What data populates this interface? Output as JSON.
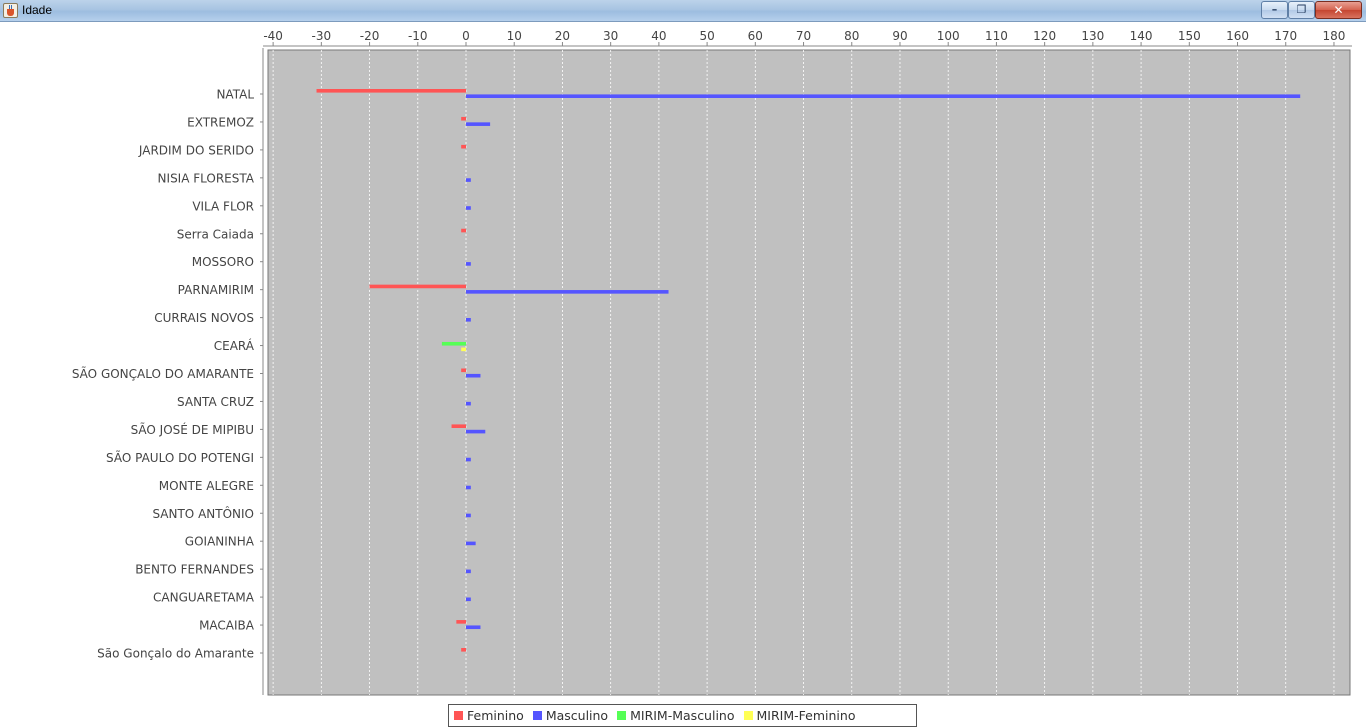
{
  "window": {
    "title": "Idade",
    "minimize_glyph": "–",
    "restore_glyph": "❐",
    "close_glyph": "✕"
  },
  "colors": {
    "Feminino": "#ff5555",
    "Masculino": "#5555ff",
    "MIRIM-Masculino": "#55ff55",
    "MIRIM-Feminino": "#ffff55",
    "plot_background": "#c0c0c0",
    "gridline": "#ffffff"
  },
  "chart_data": {
    "type": "bar",
    "orientation": "horizontal",
    "title": "",
    "xlabel": "",
    "ylabel": "",
    "xlim": [
      -41,
      182
    ],
    "ticks": [
      -40,
      -30,
      -20,
      -10,
      0,
      10,
      20,
      30,
      40,
      50,
      60,
      70,
      80,
      90,
      100,
      110,
      120,
      130,
      140,
      150,
      160,
      170,
      180
    ],
    "tick_labels": [
      "-40",
      "-30",
      "-20",
      "-10",
      "0",
      "10",
      "20",
      "30",
      "40",
      "50",
      "60",
      "70",
      "80",
      "90",
      "100",
      "110",
      "120",
      "130",
      "140",
      "150",
      "160",
      "170",
      "180"
    ],
    "grid": "vertical dashed",
    "legend_position": "bottom-center",
    "categories": [
      "NATAL",
      "EXTREMOZ",
      "JARDIM DO SERIDO",
      "NISIA FLORESTA",
      "VILA FLOR",
      "Serra Caiada",
      "MOSSORO",
      "PARNAMIRIM",
      "CURRAIS NOVOS",
      "CEARÁ",
      "SÃO GONÇALO DO AMARANTE",
      "SANTA CRUZ",
      "SÃO JOSÉ DE MIPIBU",
      "SÃO PAULO DO POTENGI",
      "MONTE ALEGRE",
      "SANTO ANTÔNIO",
      "GOIANINHA",
      "BENTO FERNANDES",
      "CANGUARETAMA",
      "MACAIBA",
      "São Gonçalo do Amarante"
    ],
    "series": [
      {
        "name": "Feminino",
        "values": [
          -31,
          -1,
          -1,
          0,
          0,
          -1,
          0,
          -20,
          0,
          0,
          -1,
          0,
          -3,
          0,
          0,
          0,
          0,
          0,
          0,
          -2,
          -1
        ]
      },
      {
        "name": "Masculino",
        "values": [
          173,
          5,
          0,
          1,
          1,
          0,
          1,
          42,
          1,
          0,
          3,
          1,
          4,
          1,
          1,
          1,
          2,
          1,
          1,
          3,
          0
        ]
      },
      {
        "name": "MIRIM-Masculino",
        "values": [
          0,
          0,
          0,
          0,
          0,
          0,
          0,
          0,
          0,
          -5,
          0,
          0,
          0,
          0,
          0,
          0,
          0,
          0,
          0,
          0,
          0
        ]
      },
      {
        "name": "MIRIM-Feminino",
        "values": [
          0,
          0,
          0,
          0,
          0,
          0,
          0,
          0,
          0,
          -1,
          0,
          0,
          0,
          0,
          0,
          0,
          0,
          0,
          0,
          0,
          0
        ]
      }
    ]
  }
}
